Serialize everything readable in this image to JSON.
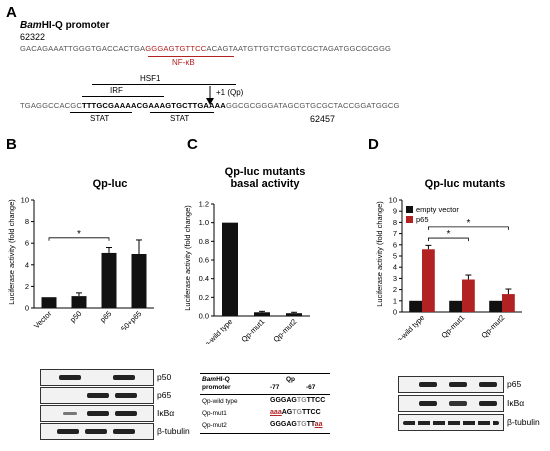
{
  "panelA": {
    "label": "A",
    "promoter_title_italic": "Bam",
    "promoter_title_rest": "HI-Q promoter",
    "coord_start": "62322",
    "seq1_pre": "GACAGAAATTGGGTGACCACTGA",
    "seq1_red": "GGGAGTGTTCC",
    "seq1_post": "ACAGTAATGTTGTCTGGTCGCTAGATGGCGCGGG",
    "nfkb_label": "NF-κB",
    "hsf1_label": "HSF1",
    "irf_label": "IRF",
    "qp_label": "+1 (Qp)",
    "seq2_pre": "TGAGGCCACGC",
    "seq2_bold": "TTTGCGAAAACGAAAGTGCTTGAAAA",
    "seq2_post": "GGCGCGGGATAGCGTGCGCTACCGGATGGCG",
    "stat_label_1": "STAT",
    "stat_label_2": "STAT",
    "coord_end": "62457"
  },
  "panelB": {
    "label": "B",
    "title": "Qp-luc",
    "ylabel": "Luciferase activity (fold change)",
    "significance": "*",
    "blot_labels": [
      "p50",
      "p65",
      "IκBα",
      "β-tubulin"
    ]
  },
  "panelC": {
    "label": "C",
    "title_line1": "Qp-luc mutants",
    "title_line2": "basal activity",
    "ylabel": "Luciferase activity (fold change)",
    "table": {
      "h1_italic": "Bam",
      "h1_rest": "HI-Q",
      "h1_line2": "promoter",
      "h2": "Qp",
      "pos_left": "-77",
      "pos_right": "-67",
      "rows": [
        {
          "name": "Qp-wild type",
          "seq": "GGGAGTGTTCC"
        },
        {
          "name": "Qp-mut1",
          "seq": "aaaAGTGTTCC"
        },
        {
          "name": "Qp-mut2",
          "seq": "GGGAGTGTTaa"
        }
      ]
    }
  },
  "panelD": {
    "label": "D",
    "title": "Qp-luc mutants",
    "ylabel": "Luciferase activity (fold change)",
    "legend": [
      "empty vector",
      "p65"
    ],
    "significance": [
      "*",
      "*"
    ],
    "blot_labels": [
      "p65",
      "IκBα",
      "β-tubulin"
    ]
  },
  "colors": {
    "black": "#111111",
    "red": "#b22222",
    "seq_red": "#b22222"
  },
  "chart_data": [
    {
      "type": "bar",
      "panel": "B",
      "title": "Qp-luc",
      "ylabel": "Luciferase activity (fold change)",
      "categories": [
        "Vector",
        "p50",
        "p65",
        "p50+p65"
      ],
      "values": [
        1.0,
        1.1,
        5.1,
        5.0
      ],
      "errors": [
        0.0,
        0.3,
        0.5,
        1.3
      ],
      "ylim": [
        0,
        10
      ],
      "yticks": [
        0,
        2,
        4,
        6,
        8,
        10
      ],
      "color": "#111111"
    },
    {
      "type": "bar",
      "panel": "C",
      "title": "Qp-luc mutants basal activity",
      "ylabel": "Luciferase activity (fold change)",
      "categories": [
        "Qp-wild type",
        "Qp-mut1",
        "Qp-mut2"
      ],
      "values": [
        1.0,
        0.04,
        0.03
      ],
      "errors": [
        0.0,
        0.01,
        0.01
      ],
      "ylim": [
        0,
        1.2
      ],
      "yticks": [
        0.0,
        0.2,
        0.4,
        0.6,
        0.8,
        1.0,
        1.2
      ],
      "color": "#111111"
    },
    {
      "type": "bar",
      "panel": "D",
      "title": "Qp-luc mutants",
      "ylabel": "Luciferase activity (fold change)",
      "categories": [
        "Qp-wild type",
        "Qp-mut1",
        "Qp-mut2"
      ],
      "series": [
        {
          "name": "empty vector",
          "values": [
            1.0,
            1.0,
            1.0
          ],
          "errors": [
            0.0,
            0.0,
            0.0
          ],
          "color": "#111111"
        },
        {
          "name": "p65",
          "values": [
            5.6,
            2.9,
            1.6
          ],
          "errors": [
            0.35,
            0.4,
            0.45
          ],
          "color": "#b22222"
        }
      ],
      "ylim": [
        0,
        10
      ],
      "yticks": [
        0,
        1,
        2,
        3,
        4,
        5,
        6,
        7,
        8,
        9,
        10
      ],
      "legend_position": "top-left"
    }
  ]
}
